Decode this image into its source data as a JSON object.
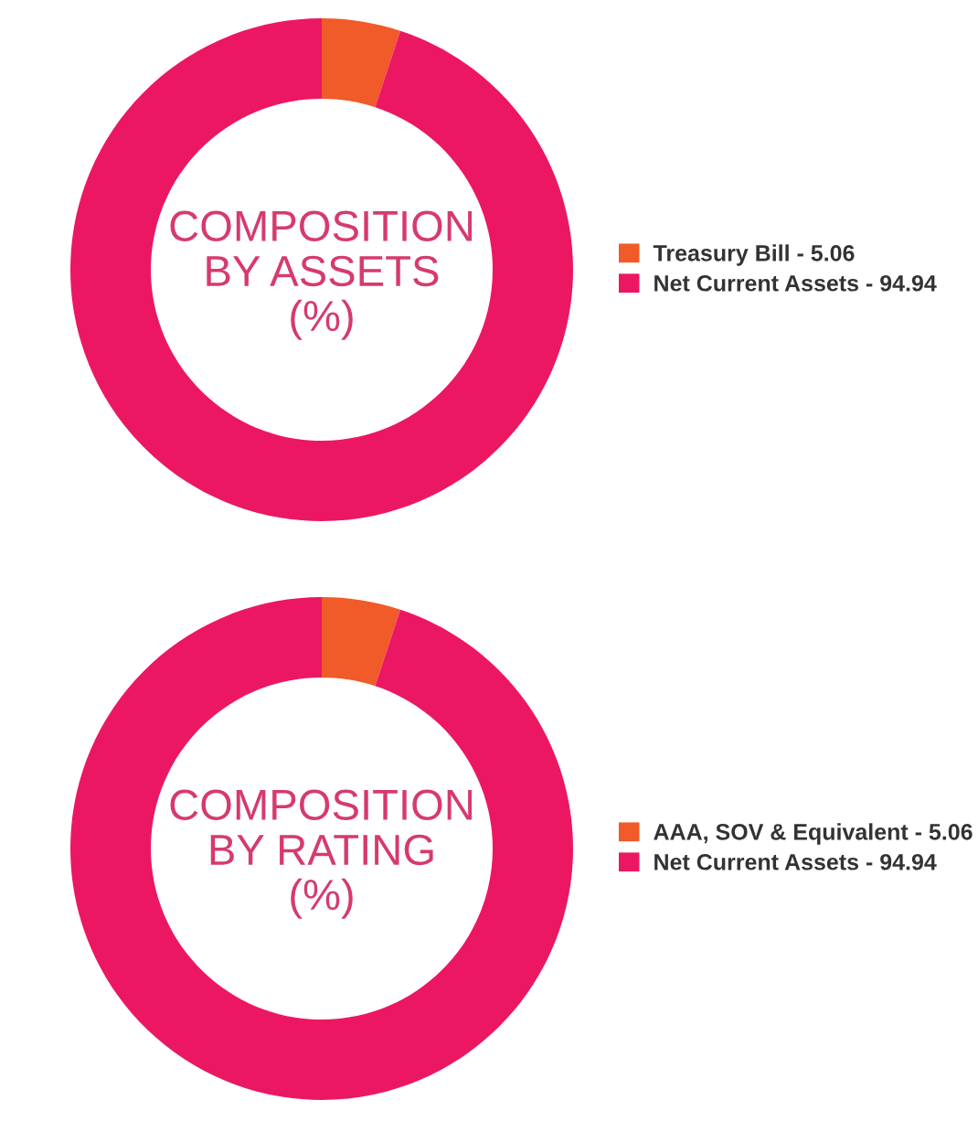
{
  "chart_data": [
    {
      "type": "donut",
      "title": "COMPOSITION\nBY ASSETS\n(%)",
      "categories": [
        "Treasury Bill - 5.06",
        "Net Current Assets - 94.94"
      ],
      "values": [
        5.06,
        94.94
      ],
      "colors": [
        "#f15a29",
        "#ec1763"
      ],
      "legend": "right"
    },
    {
      "type": "donut",
      "title": "COMPOSITION\nBY RATING\n(%)",
      "categories": [
        "AAA, SOV & Equivalent - 5.06",
        "Net Current Assets - 94.94"
      ],
      "values": [
        5.06,
        94.94
      ],
      "colors": [
        "#f15a29",
        "#ec1763"
      ],
      "legend": "right"
    }
  ]
}
